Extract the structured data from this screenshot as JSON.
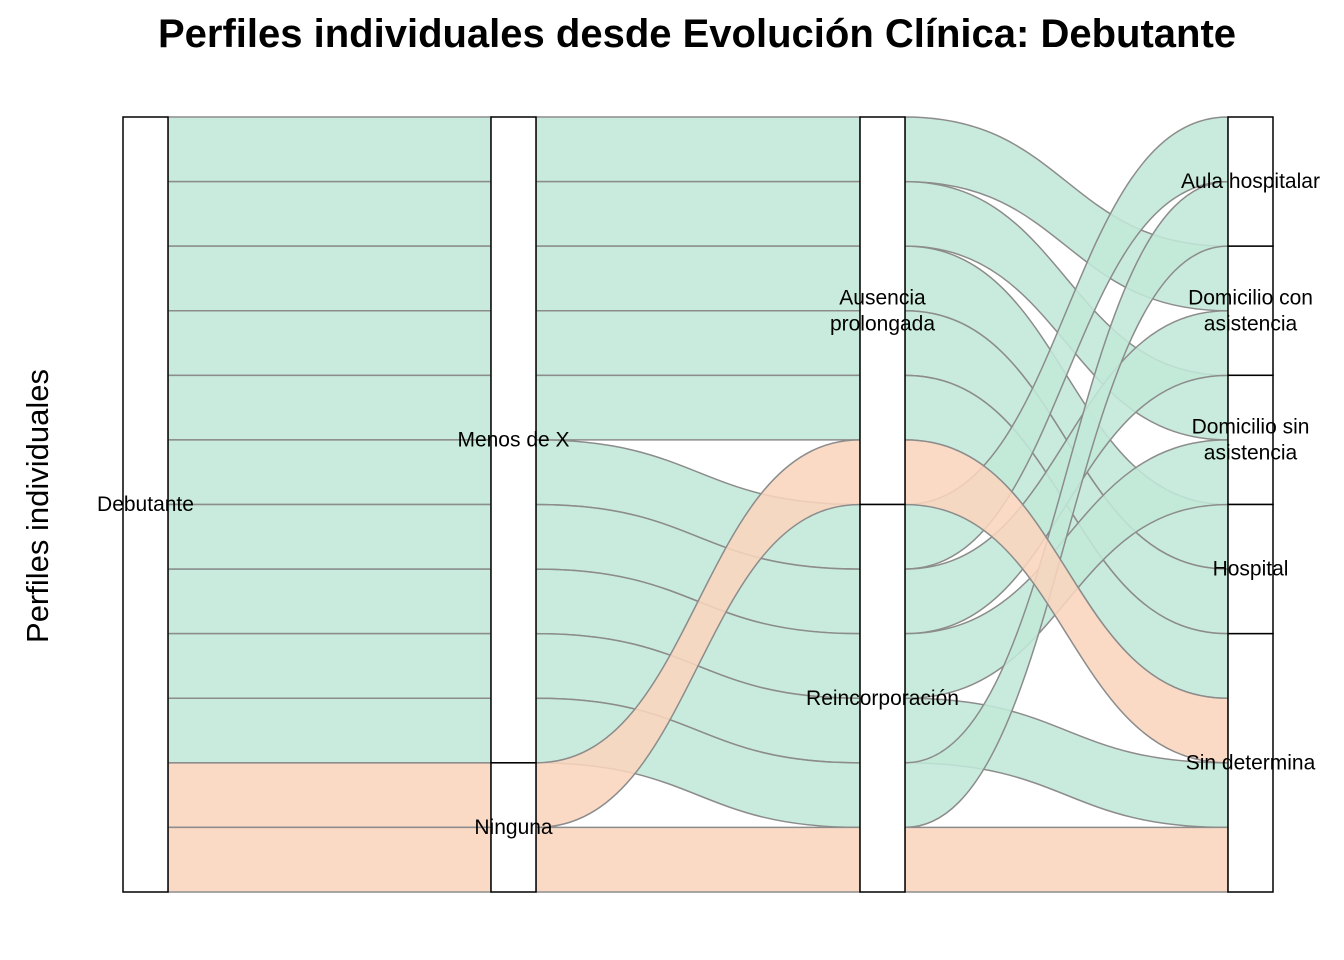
{
  "chart_data": {
    "type": "alluvial",
    "title": "Perfiles individuales desde Evolución Clínica: Debutante",
    "ylabel": "Perfiles individuales",
    "xlabel": "",
    "fill_legend": "none",
    "colors": {
      "fill_green": "#c2e8d8",
      "fill_orange": "#f9d5bd",
      "stroke": "#8c8c8c",
      "node_stroke": "#000000",
      "node_fill": "#ffffff"
    },
    "axes": [
      {
        "strata": [
          "Debutante"
        ]
      },
      {
        "strata": [
          "Menos de X",
          "Ninguna"
        ]
      },
      {
        "strata": [
          "Ausencia prolongada",
          "Reincorporación"
        ]
      },
      {
        "strata": [
          "Aula hospitalar",
          "Domicilio con asistencia",
          "Domicilio sin asistencia",
          "Hospital",
          "Sin determina"
        ]
      }
    ],
    "stratum_labels": {
      "Debutante": [
        "Debutante"
      ],
      "Menos de X": [
        "Menos de X"
      ],
      "Ninguna": [
        "Ninguna"
      ],
      "Ausencia prolongada": [
        "Ausencia",
        "prolongada"
      ],
      "Reincorporación": [
        "Reincorporación"
      ],
      "Aula hospitalar": [
        "Aula hospitalar"
      ],
      "Domicilio con asistencia": [
        "Domicilio con",
        "asistencia"
      ],
      "Domicilio sin asistencia": [
        "Domicilio sin",
        "asistencia"
      ],
      "Hospital": [
        "Hospital"
      ],
      "Sin determina": [
        "Sin determina"
      ]
    },
    "flows": [
      {
        "id": 1,
        "path": [
          "Debutante",
          "Menos de X",
          "Ausencia prolongada",
          "Domicilio con asistencia"
        ],
        "fill": "green"
      },
      {
        "id": 2,
        "path": [
          "Debutante",
          "Menos de X",
          "Ausencia prolongada",
          "Domicilio sin asistencia"
        ],
        "fill": "green"
      },
      {
        "id": 3,
        "path": [
          "Debutante",
          "Menos de X",
          "Ausencia prolongada",
          "Hospital"
        ],
        "fill": "green"
      },
      {
        "id": 4,
        "path": [
          "Debutante",
          "Menos de X",
          "Ausencia prolongada",
          "Hospital"
        ],
        "fill": "green"
      },
      {
        "id": 5,
        "path": [
          "Debutante",
          "Menos de X",
          "Ausencia prolongada",
          "Sin determina"
        ],
        "fill": "green"
      },
      {
        "id": 6,
        "path": [
          "Debutante",
          "Menos de X",
          "Reincorporación",
          "Aula hospitalar"
        ],
        "fill": "green"
      },
      {
        "id": 7,
        "path": [
          "Debutante",
          "Menos de X",
          "Reincorporación",
          "Domicilio con asistencia"
        ],
        "fill": "green"
      },
      {
        "id": 8,
        "path": [
          "Debutante",
          "Menos de X",
          "Reincorporación",
          "Domicilio sin asistencia"
        ],
        "fill": "green"
      },
      {
        "id": 9,
        "path": [
          "Debutante",
          "Menos de X",
          "Reincorporación",
          "Sin determina"
        ],
        "fill": "green"
      },
      {
        "id": 10,
        "path": [
          "Debutante",
          "Menos de X",
          "Reincorporación",
          "Aula hospitalar"
        ],
        "fill": "green"
      },
      {
        "id": 11,
        "path": [
          "Debutante",
          "Ninguna",
          "Ausencia prolongada",
          "Sin determina"
        ],
        "fill": "orange"
      },
      {
        "id": 12,
        "path": [
          "Debutante",
          "Ninguna",
          "Reincorporación",
          "Sin determina"
        ],
        "fill": "orange"
      }
    ],
    "order_axis2": [
      1,
      2,
      3,
      4,
      5,
      6,
      7,
      8,
      9,
      10,
      11,
      12
    ],
    "order_axis3": [
      1,
      2,
      3,
      4,
      5,
      11,
      6,
      7,
      8,
      9,
      10,
      12
    ],
    "order_axis4": [
      6,
      10,
      1,
      7,
      2,
      8,
      3,
      4,
      5,
      11,
      9,
      12
    ]
  }
}
